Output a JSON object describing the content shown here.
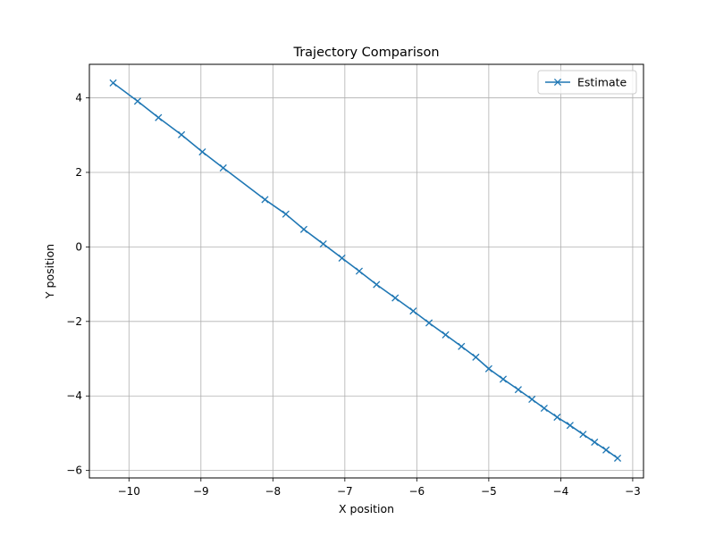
{
  "chart_data": {
    "type": "line",
    "title": "Trajectory Comparison",
    "xlabel": "X position",
    "ylabel": "Y position",
    "xlim": [
      -10.55,
      -2.85
    ],
    "ylim": [
      -6.2,
      4.9
    ],
    "xticks": [
      -10,
      -9,
      -8,
      -7,
      -6,
      -5,
      -4,
      -3
    ],
    "yticks": [
      -6,
      -4,
      -2,
      0,
      2,
      4
    ],
    "grid": true,
    "legend_position": "top-right",
    "series": [
      {
        "name": "Estimate",
        "color": "#1f77b4",
        "marker": "x",
        "x": [
          -10.22,
          -9.88,
          -9.59,
          -9.27,
          -8.98,
          -8.69,
          -8.11,
          -7.82,
          -7.57,
          -7.3,
          -7.04,
          -6.8,
          -6.56,
          -6.3,
          -6.05,
          -5.83,
          -5.6,
          -5.38,
          -5.18,
          -5.0,
          -4.8,
          -4.59,
          -4.4,
          -4.23,
          -4.05,
          -3.87,
          -3.69,
          -3.53,
          -3.37,
          -3.21
        ],
        "y": [
          4.4,
          3.91,
          3.47,
          3.01,
          2.55,
          2.12,
          1.27,
          0.88,
          0.47,
          0.08,
          -0.3,
          -0.65,
          -1.01,
          -1.37,
          -1.72,
          -2.04,
          -2.36,
          -2.67,
          -2.96,
          -3.27,
          -3.55,
          -3.83,
          -4.09,
          -4.33,
          -4.57,
          -4.79,
          -5.03,
          -5.24,
          -5.45,
          -5.67
        ]
      }
    ]
  }
}
